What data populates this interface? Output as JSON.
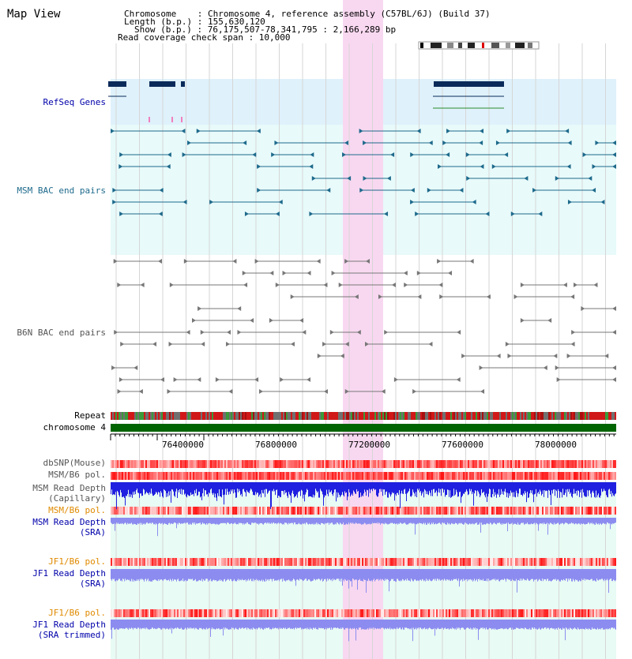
{
  "title": "Map View",
  "header": {
    "chromosome_line": "Chromosome    : Chromosome 4, reference assembly (C57BL/6J) (Build 37)",
    "length_line": "Length (b.p.) : 155,630,120",
    "show_line": "Show (b.p.) : 76,175,507-78,341,795 : 2,166,289 bp",
    "coverage_line": "Read coverage check span : 10,000"
  },
  "tracks": {
    "refseq": "RefSeq Genes",
    "msm_bac": "MSM BAC end pairs",
    "b6n_bac": "B6N BAC end pairs",
    "repeat": "Repeat",
    "chromosome": "chromosome 4",
    "dbsnp": "dbSNP(Mouse)",
    "msm_b6_pol_1": "MSM/B6 pol.",
    "msm_depth_cap_1": "MSM Read Depth",
    "msm_depth_cap_2": "(Capillary)",
    "msm_b6_pol_2": "MSM/B6 pol.",
    "msm_depth_sra_1": "MSM Read Depth",
    "msm_depth_sra_2": "(SRA)",
    "jf1_b6_pol_1": "JF1/B6 pol.",
    "jf1_depth_sra_1": "JF1 Read Depth",
    "jf1_depth_sra_2": "(SRA)",
    "jf1_b6_pol_2": "JF1/B6 pol.",
    "jf1_depth_trim_1": "JF1 Read Depth",
    "jf1_depth_trim_2": "(SRA trimmed)"
  },
  "axis_ticks": [
    "76400000",
    "76800000",
    "77200000",
    "77600000",
    "78000000"
  ],
  "colors": {
    "refseq_bg": "#dff1fb",
    "bac_bg": "#e8fafa",
    "highlight": "#f8d8f0",
    "refseq_gene": "#0a2a5a",
    "msm_feature": "#1e6a8c",
    "b6n_feature": "#777777",
    "chromosome_bar": "#006400",
    "snp": "#e02020",
    "depth_capillary": "#2020e0",
    "depth_sra": "#8c8cf0"
  }
}
